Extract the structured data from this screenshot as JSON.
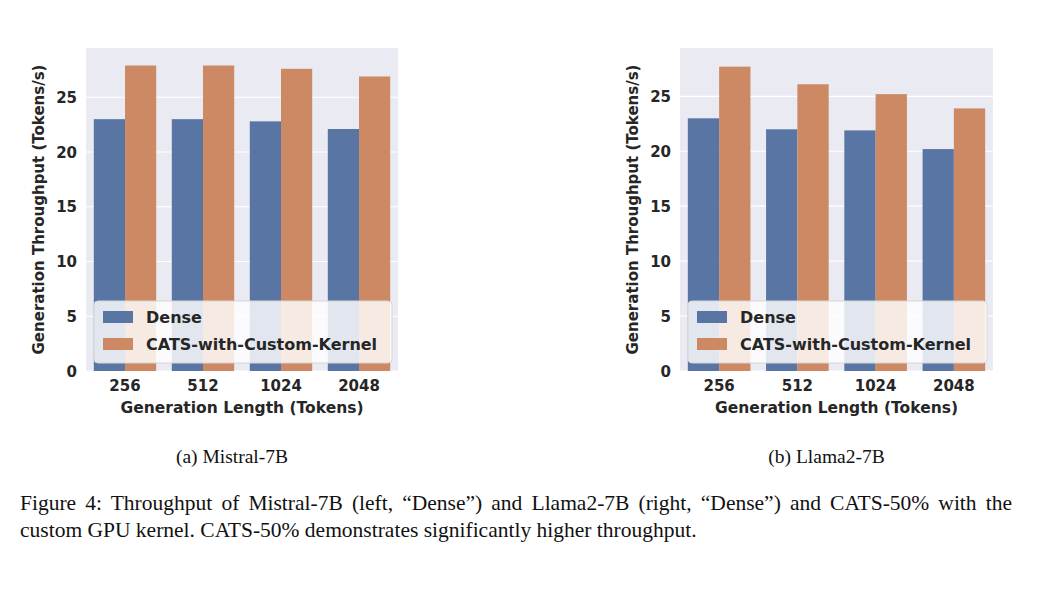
{
  "chart_data": [
    {
      "type": "bar",
      "title": "(a) Mistral-7B",
      "x_label": "Generation Length (Tokens)",
      "y_label": "Generation Throughput (Tokens/s)",
      "categories": [
        "256",
        "512",
        "1024",
        "2048"
      ],
      "series": [
        {
          "name": "Dense",
          "color": "#5975a4",
          "values": [
            23.0,
            23.0,
            22.8,
            22.1
          ]
        },
        {
          "name": "CATS-with-Custom-Kernel",
          "color": "#cc8963",
          "values": [
            27.9,
            27.9,
            27.6,
            26.9
          ]
        }
      ],
      "ylim": [
        0,
        29.5
      ],
      "yticks": [
        0,
        5,
        10,
        15,
        20,
        25
      ],
      "grid": true,
      "legend": "lower left"
    },
    {
      "type": "bar",
      "title": "(b) Llama2-7B",
      "x_label": "Generation Length (Tokens)",
      "y_label": "Generation Throughput (Tokens/s)",
      "categories": [
        "256",
        "512",
        "1024",
        "2048"
      ],
      "series": [
        {
          "name": "Dense",
          "color": "#5975a4",
          "values": [
            23.0,
            22.0,
            21.9,
            20.2
          ]
        },
        {
          "name": "CATS-with-Custom-Kernel",
          "color": "#cc8963",
          "values": [
            27.7,
            26.1,
            25.2,
            23.9
          ]
        }
      ],
      "ylim": [
        0,
        29.4
      ],
      "yticks": [
        0,
        5,
        10,
        15,
        20,
        25
      ],
      "grid": true,
      "legend": "lower left"
    }
  ],
  "caption": "Figure 4: Throughput of Mistral-7B (left, “Dense”) and Llama2-7B (right, “Dense”) and CATS-50% with the custom GPU kernel. CATS-50% demonstrates significantly higher throughput."
}
